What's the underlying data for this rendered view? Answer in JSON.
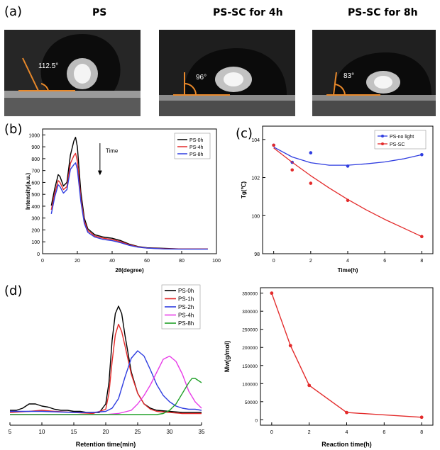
{
  "panel_a": {
    "label": "(a)",
    "photos": [
      {
        "title": "PS",
        "angle": "112.5°"
      },
      {
        "title": "PS-SC for 4h",
        "angle": "96°"
      },
      {
        "title": "PS-SC for 8h",
        "angle": "83°"
      }
    ]
  },
  "panel_labels": {
    "b": "(b)",
    "c": "(c)",
    "d": "(d)"
  },
  "colors": {
    "black": "#000000",
    "red": "#e32b2b",
    "blue": "#2f3de0",
    "magenta": "#e83de8",
    "green": "#22a12a",
    "orange": "#e8882a"
  },
  "chart_data": [
    {
      "id": "b",
      "type": "line",
      "xlabel": "2θ(degree)",
      "ylabel": "Intensity(a.u.)",
      "xlim": [
        0,
        100
      ],
      "ylim": [
        0,
        1050
      ],
      "xticks": [
        0,
        20,
        40,
        60,
        80,
        100
      ],
      "yticks": [
        0,
        100,
        200,
        300,
        400,
        500,
        600,
        700,
        800,
        900,
        1000
      ],
      "annotation": "Time",
      "legend_position": "top-right",
      "series": [
        {
          "name": "PS-0h",
          "color": "#000000",
          "x": [
            5,
            7,
            9,
            10,
            12,
            14,
            16,
            18,
            19,
            20,
            22,
            24,
            26,
            30,
            35,
            40,
            45,
            50,
            55,
            60,
            70,
            80,
            95
          ],
          "y": [
            405,
            550,
            665,
            650,
            570,
            600,
            830,
            950,
            980,
            900,
            520,
            300,
            210,
            160,
            140,
            130,
            110,
            80,
            60,
            50,
            45,
            40,
            40
          ]
        },
        {
          "name": "PS-4h",
          "color": "#e32b2b",
          "x": [
            5,
            7,
            9,
            10,
            12,
            14,
            16,
            18,
            19,
            20,
            22,
            24,
            26,
            30,
            35,
            40,
            45,
            50,
            55,
            60,
            70,
            80,
            95
          ],
          "y": [
            370,
            510,
            615,
            600,
            540,
            565,
            760,
            825,
            845,
            780,
            470,
            275,
            195,
            150,
            130,
            120,
            100,
            75,
            58,
            48,
            42,
            40,
            40
          ]
        },
        {
          "name": "PS-8h",
          "color": "#2f3de0",
          "x": [
            5,
            7,
            9,
            10,
            12,
            14,
            16,
            18,
            19,
            20,
            22,
            24,
            26,
            30,
            35,
            40,
            45,
            50,
            55,
            60,
            70,
            80,
            95
          ],
          "y": [
            335,
            480,
            580,
            565,
            510,
            540,
            710,
            750,
            765,
            710,
            440,
            255,
            180,
            140,
            120,
            110,
            92,
            70,
            55,
            47,
            40,
            38,
            38
          ]
        }
      ]
    },
    {
      "id": "c",
      "type": "scatter",
      "xlabel": "Time(h)",
      "ylabel": "Tg(℃)",
      "xlim": [
        -0.6,
        8.6
      ],
      "ylim": [
        98,
        104.7
      ],
      "xticks": [
        0,
        2,
        4,
        6,
        8
      ],
      "yticks": [
        98,
        100,
        102,
        104
      ],
      "legend_position": "top-right",
      "series": [
        {
          "name": "PS-no light",
          "color": "#2f3de0",
          "x": [
            0,
            1,
            2,
            4,
            8
          ],
          "y": [
            103.7,
            102.8,
            103.3,
            102.6,
            103.2
          ],
          "fit": {
            "x": [
              0,
              1,
              2,
              3,
              4,
              5,
              6,
              7,
              8
            ],
            "y": [
              103.6,
              103.08,
              102.78,
              102.65,
              102.65,
              102.72,
              102.82,
              102.98,
              103.2
            ]
          }
        },
        {
          "name": "PS-SC",
          "color": "#e32b2b",
          "x": [
            0,
            1,
            2,
            4,
            8
          ],
          "y": [
            103.7,
            102.4,
            101.7,
            100.8,
            98.9
          ],
          "fit": {
            "x": [
              0,
              1,
              2,
              3,
              4,
              5,
              6,
              7,
              8
            ],
            "y": [
              103.55,
              102.8,
              102.1,
              101.45,
              100.85,
              100.3,
              99.8,
              99.35,
              98.9
            ]
          }
        }
      ]
    },
    {
      "id": "d1",
      "type": "line",
      "xlabel": "Retention time(min)",
      "xlim": [
        5,
        35
      ],
      "xticks": [
        5,
        10,
        15,
        20,
        25,
        30,
        35
      ],
      "legend_position": "top-right",
      "series": [
        {
          "name": "PS-0h",
          "color": "#000000",
          "x": [
            5,
            6,
            7,
            8,
            9,
            10,
            11,
            12,
            13,
            14,
            15,
            16,
            17,
            18,
            19,
            20,
            20.5,
            21,
            21.5,
            22,
            22.5,
            23,
            24,
            25,
            26,
            27,
            28,
            30,
            32,
            34,
            35
          ],
          "y": [
            0.14,
            0.14,
            0.16,
            0.2,
            0.2,
            0.18,
            0.17,
            0.15,
            0.14,
            0.14,
            0.13,
            0.13,
            0.12,
            0.12,
            0.12,
            0.2,
            0.4,
            0.8,
            1.05,
            1.12,
            1.05,
            0.85,
            0.5,
            0.3,
            0.2,
            0.16,
            0.14,
            0.13,
            0.12,
            0.12,
            0.12
          ]
        },
        {
          "name": "PS-1h",
          "color": "#e32b2b",
          "x": [
            5,
            8,
            10,
            12,
            15,
            18,
            20,
            20.5,
            21,
            21.5,
            22,
            22.5,
            23,
            24,
            25,
            26,
            27,
            28,
            30,
            32,
            34,
            35
          ],
          "y": [
            0.12,
            0.13,
            0.14,
            0.13,
            0.12,
            0.11,
            0.15,
            0.3,
            0.6,
            0.85,
            0.95,
            0.88,
            0.75,
            0.48,
            0.3,
            0.2,
            0.15,
            0.13,
            0.12,
            0.11,
            0.11,
            0.11
          ]
        },
        {
          "name": "PS-2h",
          "color": "#2f3de0",
          "x": [
            5,
            10,
            15,
            18,
            20,
            21,
            22,
            23,
            24,
            25,
            26,
            27,
            28,
            29,
            30,
            31,
            32,
            33,
            34,
            35
          ],
          "y": [
            0.13,
            0.13,
            0.12,
            0.12,
            0.13,
            0.16,
            0.25,
            0.45,
            0.63,
            0.7,
            0.65,
            0.52,
            0.38,
            0.28,
            0.22,
            0.18,
            0.16,
            0.15,
            0.15,
            0.14
          ]
        },
        {
          "name": "PS-4h",
          "color": "#e83de8",
          "x": [
            5,
            10,
            15,
            20,
            22,
            24,
            25,
            26,
            27,
            28,
            29,
            30,
            31,
            32,
            33,
            34,
            35
          ],
          "y": [
            0.1,
            0.1,
            0.1,
            0.1,
            0.11,
            0.14,
            0.2,
            0.28,
            0.38,
            0.5,
            0.62,
            0.65,
            0.6,
            0.48,
            0.32,
            0.22,
            0.16
          ]
        },
        {
          "name": "PS-8h",
          "color": "#22a12a",
          "x": [
            5,
            10,
            15,
            20,
            25,
            28,
            29,
            30,
            31,
            32,
            33,
            33.5,
            34,
            34.5,
            35
          ],
          "y": [
            0.1,
            0.1,
            0.1,
            0.1,
            0.1,
            0.1,
            0.11,
            0.14,
            0.2,
            0.3,
            0.4,
            0.44,
            0.44,
            0.42,
            0.4
          ]
        }
      ]
    },
    {
      "id": "d2",
      "type": "line",
      "xlabel": "Reaction time(h)",
      "ylabel": "Mw(g/mol)",
      "xlim": [
        -0.6,
        8.6
      ],
      "ylim": [
        -15000,
        365000
      ],
      "xticks": [
        0,
        2,
        4,
        6,
        8
      ],
      "yticks": [
        0,
        50000,
        100000,
        150000,
        200000,
        250000,
        300000,
        350000
      ],
      "series": [
        {
          "color": "#e32b2b",
          "x": [
            0,
            1,
            2,
            4,
            8
          ],
          "y": [
            350000,
            205000,
            95000,
            20000,
            7000
          ]
        }
      ]
    }
  ]
}
